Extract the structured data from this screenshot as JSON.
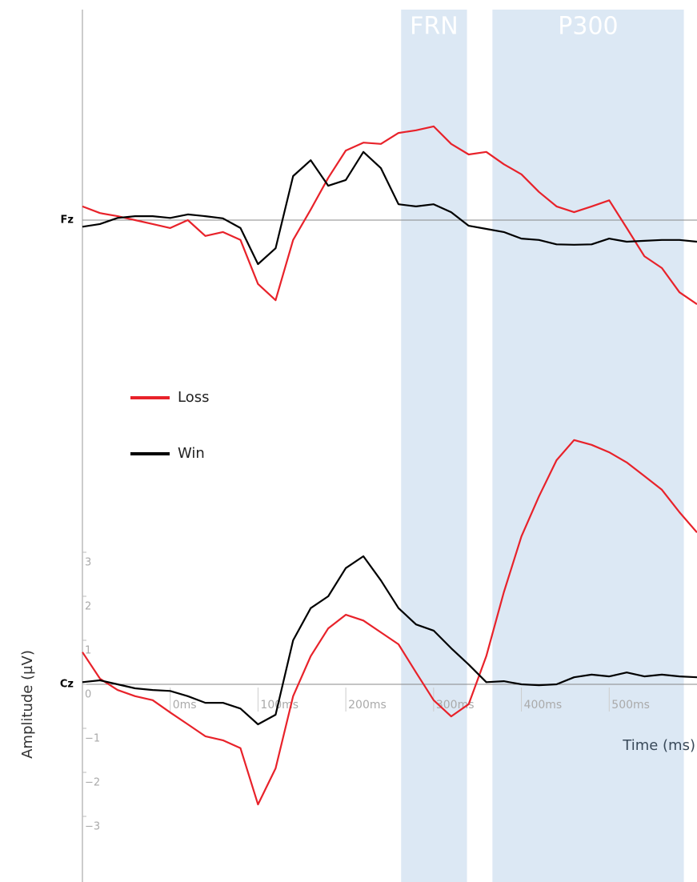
{
  "chart_data": [
    {
      "type": "line",
      "label": "Fz",
      "regions": [
        {
          "label": "FRN",
          "range": [
            263,
            338
          ],
          "color": "#dce8f4"
        },
        {
          "label": "P300",
          "range": [
            367,
            585
          ],
          "color": "#dce8f4"
        }
      ],
      "xlim": [
        -100,
        600
      ],
      "ylim": [
        -3,
        5
      ],
      "x": [
        -100,
        -80,
        -60,
        -40,
        -20,
        0,
        20,
        40,
        60,
        80,
        100,
        120,
        140,
        160,
        180,
        200,
        220,
        240,
        260,
        280,
        300,
        320,
        340,
        360,
        380,
        400,
        420,
        440,
        460,
        480,
        500,
        520,
        540,
        560,
        580,
        600
      ],
      "series": [
        {
          "name": "Loss",
          "color": "#e8222a",
          "values": [
            0.31,
            0.16,
            0.09,
            0,
            -0.09,
            -0.18,
            0,
            -0.36,
            -0.27,
            -0.45,
            -1.45,
            -1.82,
            -0.45,
            0.24,
            0.96,
            1.58,
            1.76,
            1.73,
            1.98,
            2.04,
            2.13,
            1.73,
            1.49,
            1.55,
            1.27,
            1.04,
            0.64,
            0.31,
            0.18,
            0.31,
            0.45,
            -0.18,
            -0.82,
            -1.09,
            -1.64,
            -1.91
          ]
        },
        {
          "name": "Win",
          "color": "#000000",
          "values": [
            -0.15,
            -0.09,
            0.05,
            0.09,
            0.09,
            0.05,
            0.13,
            0.09,
            0.04,
            -0.18,
            -1.0,
            -0.64,
            1.0,
            1.36,
            0.78,
            0.91,
            1.55,
            1.18,
            0.36,
            0.31,
            0.36,
            0.18,
            -0.13,
            -0.2,
            -0.27,
            -0.42,
            -0.45,
            -0.55,
            -0.56,
            -0.55,
            -0.42,
            -0.49,
            -0.47,
            -0.45,
            -0.45,
            -0.49
          ]
        }
      ]
    },
    {
      "type": "line",
      "label": "Cz",
      "ylabel": "Amplitude (µV)",
      "xlabel": "Time (ms)",
      "xlim": [
        -100,
        600
      ],
      "ylim": [
        -4.5,
        6
      ],
      "xticks": [
        {
          "value": 0,
          "label": "0ms"
        },
        {
          "value": 100,
          "label": "100ms"
        },
        {
          "value": 200,
          "label": "200ms"
        },
        {
          "value": 300,
          "label": "300ms"
        },
        {
          "value": 400,
          "label": "400ms"
        },
        {
          "value": 500,
          "label": "500ms"
        }
      ],
      "yticks": [
        3,
        2,
        1,
        0,
        {
          "value": -1,
          "label": "−1"
        },
        {
          "value": -2,
          "label": "−2"
        },
        {
          "value": -3,
          "label": "−3"
        }
      ],
      "x": [
        -100,
        -80,
        -60,
        -40,
        -20,
        0,
        20,
        40,
        60,
        80,
        100,
        120,
        140,
        160,
        180,
        200,
        220,
        240,
        260,
        280,
        300,
        320,
        340,
        360,
        380,
        400,
        420,
        440,
        460,
        480,
        500,
        520,
        540,
        560,
        580,
        600
      ],
      "series": [
        {
          "name": "Loss",
          "color": "#e8222a",
          "values": [
            0.73,
            0.13,
            -0.13,
            -0.27,
            -0.36,
            -0.64,
            -0.91,
            -1.18,
            -1.27,
            -1.45,
            -2.73,
            -1.91,
            -0.27,
            0.64,
            1.27,
            1.58,
            1.45,
            1.18,
            0.91,
            0.27,
            -0.36,
            -0.73,
            -0.45,
            0.64,
            2.09,
            3.36,
            4.27,
            5.09,
            5.55,
            5.44,
            5.27,
            5.04,
            4.73,
            4.42,
            3.91,
            3.45
          ]
        },
        {
          "name": "Win",
          "color": "#000000",
          "values": [
            0.05,
            0.09,
            0,
            -0.09,
            -0.13,
            -0.15,
            -0.27,
            -0.42,
            -0.42,
            -0.55,
            -0.91,
            -0.69,
            1.0,
            1.73,
            2.0,
            2.64,
            2.91,
            2.36,
            1.73,
            1.36,
            1.22,
            0.82,
            0.45,
            0.05,
            0.07,
            0,
            -0.02,
            0,
            0.16,
            0.22,
            0.18,
            0.27,
            0.18,
            0.22,
            0.18,
            0.16
          ]
        }
      ]
    }
  ]
}
